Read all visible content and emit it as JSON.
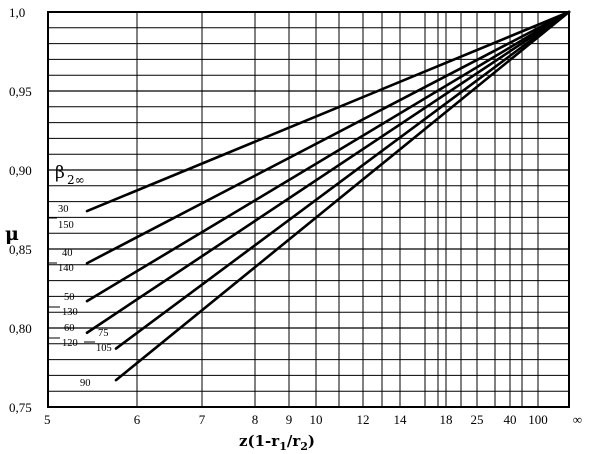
{
  "chart_data": {
    "type": "line",
    "title": "",
    "xlabel": "z(1-r₁/r₂)",
    "ylabel": "μ",
    "ylim": [
      0.75,
      1.0
    ],
    "x_ticks": [
      "5",
      "6",
      "7",
      "8",
      "9",
      "10",
      "12",
      "14",
      "18",
      "25",
      "40",
      "100",
      "∞"
    ],
    "y_ticks": [
      "0,75",
      "0,80",
      "0,85",
      "0,90",
      "0,95",
      "1,0"
    ],
    "grid": true,
    "legend_title": {
      "main": "β",
      "sub": "2∞"
    },
    "series": [
      {
        "name_top": "30",
        "name_bottom": "150",
        "start": {
          "x": "5.4",
          "y": 0.874
        },
        "end": {
          "x": "∞",
          "y": 1.0
        }
      },
      {
        "name_top": "40",
        "name_bottom": "140",
        "start": {
          "x": "5.4",
          "y": 0.841
        },
        "end": {
          "x": "∞",
          "y": 1.0
        }
      },
      {
        "name_top": "50",
        "name_bottom": "130",
        "start": {
          "x": "5.4",
          "y": 0.817
        },
        "end": {
          "x": "∞",
          "y": 1.0
        }
      },
      {
        "name_top": "60",
        "name_bottom": "120",
        "start": {
          "x": "5.4",
          "y": 0.797
        },
        "end": {
          "x": "∞",
          "y": 1.0
        }
      },
      {
        "name_top": "75",
        "name_bottom": "105",
        "start": {
          "x": "5.8",
          "y": 0.787
        },
        "end": {
          "x": "∞",
          "y": 1.0
        }
      },
      {
        "name_top": "90",
        "name_bottom": "",
        "start": {
          "x": "5.8",
          "y": 0.767
        },
        "end": {
          "x": "∞",
          "y": 1.0
        }
      }
    ]
  }
}
